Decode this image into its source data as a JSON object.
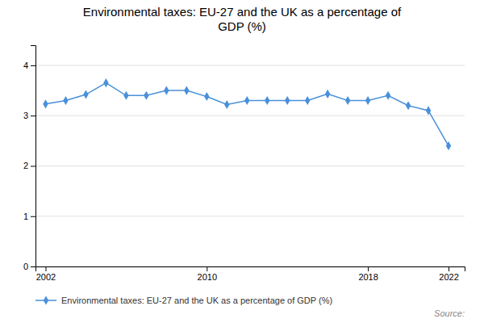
{
  "chart_data": {
    "type": "line",
    "title": "Environmental taxes: EU-27 and the UK as a percentage of\nGDP (%)",
    "x": [
      2002,
      2003,
      2004,
      2005,
      2006,
      2007,
      2008,
      2009,
      2010,
      2011,
      2012,
      2013,
      2014,
      2015,
      2016,
      2017,
      2018,
      2019,
      2020,
      2021,
      2022
    ],
    "series": [
      {
        "name": "Environmental taxes: EU-27 and the UK as a percentage of GDP (%)",
        "color": "#4a90d9",
        "marker": "diamond",
        "values": [
          3.23,
          3.3,
          3.42,
          3.65,
          3.4,
          3.4,
          3.5,
          3.5,
          3.38,
          3.22,
          3.3,
          3.3,
          3.3,
          3.3,
          3.43,
          3.3,
          3.3,
          3.4,
          3.2,
          3.1,
          2.4
        ]
      }
    ],
    "xlim": [
      2001.5,
      2022.8
    ],
    "xticks": [
      2002,
      2010,
      2018,
      2022
    ],
    "ylim": [
      0,
      4.4
    ],
    "yticks": [
      0,
      1,
      2,
      3,
      4
    ],
    "grid": true,
    "legend": "lower left",
    "annotations": [
      "Source:"
    ]
  }
}
